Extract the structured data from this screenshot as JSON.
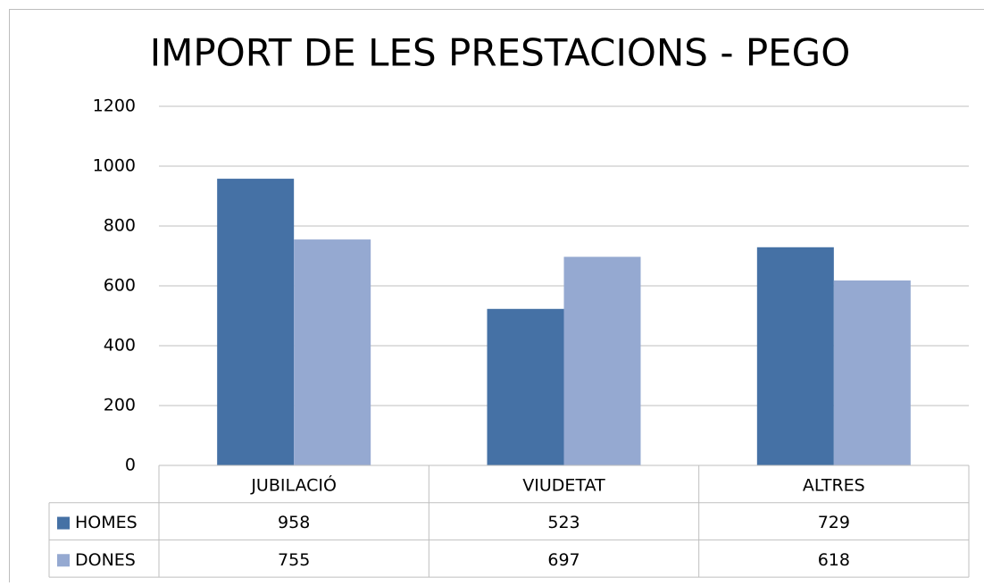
{
  "chart_data": {
    "type": "bar",
    "title": "IMPORT DE LES PRESTACIONS - PEGO",
    "categories": [
      "JUBILACIÓ",
      "VIUDETAT",
      "ALTRES"
    ],
    "series": [
      {
        "name": "HOMES",
        "color": "#4571a5",
        "values": [
          958,
          523,
          729
        ]
      },
      {
        "name": "DONES",
        "color": "#95a9d1",
        "values": [
          755,
          697,
          618
        ]
      }
    ],
    "ylim": [
      0,
      1200
    ],
    "yticks": [
      0,
      200,
      400,
      600,
      800,
      1000,
      1200
    ],
    "grid": true
  }
}
